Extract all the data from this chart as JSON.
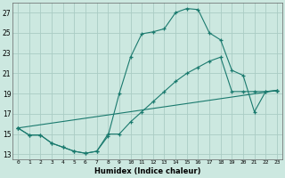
{
  "xlabel": "Humidex (Indice chaleur)",
  "bg_color": "#cce8e0",
  "grid_color": "#aaccc4",
  "line_color": "#1a7a6e",
  "xlim": [
    -0.5,
    23.5
  ],
  "ylim": [
    12.5,
    28.0
  ],
  "xticks": [
    0,
    1,
    2,
    3,
    4,
    5,
    6,
    7,
    8,
    9,
    10,
    11,
    12,
    13,
    14,
    15,
    16,
    17,
    18,
    19,
    20,
    21,
    22,
    23
  ],
  "yticks": [
    13,
    15,
    17,
    19,
    21,
    23,
    25,
    27
  ],
  "line1_x": [
    0,
    1,
    2,
    3,
    4,
    5,
    6,
    7,
    8,
    9,
    10,
    11,
    12,
    13,
    14,
    15,
    16,
    17,
    18,
    19,
    20,
    21,
    22,
    23
  ],
  "line1_y": [
    15.6,
    14.9,
    14.9,
    14.1,
    13.7,
    13.3,
    13.1,
    13.3,
    14.8,
    19.0,
    22.6,
    24.9,
    25.1,
    25.4,
    27.0,
    27.4,
    27.3,
    25.0,
    24.3,
    21.3,
    20.8,
    17.2,
    19.2,
    19.3
  ],
  "line2_x": [
    0,
    1,
    2,
    3,
    4,
    5,
    6,
    7,
    8,
    9,
    10,
    11,
    12,
    13,
    14,
    15,
    16,
    17,
    18,
    19,
    20,
    21,
    22,
    23
  ],
  "line2_y": [
    15.6,
    14.9,
    14.9,
    14.1,
    13.7,
    13.3,
    13.1,
    13.3,
    15.0,
    15.0,
    16.2,
    17.2,
    18.2,
    19.2,
    20.2,
    21.0,
    21.6,
    22.2,
    22.6,
    19.2,
    19.2,
    19.2,
    19.2,
    19.3
  ],
  "line3_x": [
    0,
    23
  ],
  "line3_y": [
    15.6,
    19.3
  ]
}
